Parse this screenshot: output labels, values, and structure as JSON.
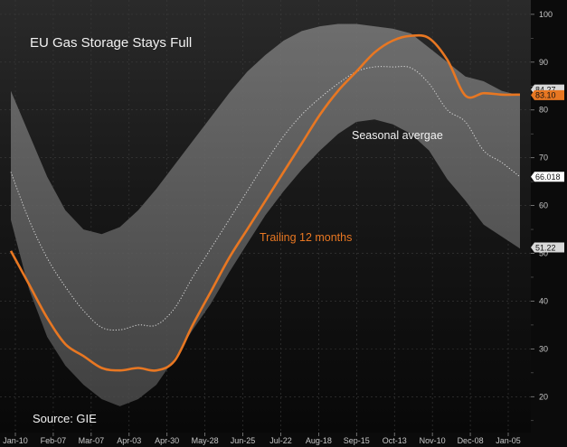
{
  "chart_data": {
    "type": "line",
    "title": "EU Gas Storage Stays Full",
    "source_note": "Source: GIE",
    "xlabel": "",
    "ylabel": "",
    "x_tick_labels": [
      "Jan-10",
      "Feb-07",
      "Mar-07",
      "Apr-03",
      "Apr-30",
      "May-28",
      "Jun-25",
      "Jul-22",
      "Aug-18",
      "Sep-15",
      "Oct-13",
      "Nov-10",
      "Dec-08",
      "Jan-05"
    ],
    "y_ticks": [
      20,
      30,
      40,
      50,
      60,
      70,
      80,
      90,
      100
    ],
    "ylim": [
      12.5,
      103
    ],
    "grid": true,
    "colors": {
      "background": "#0e0e0e",
      "band": "#6b6b6b",
      "trailing": "#e87722",
      "seasonal": "#dcdcdc",
      "text": "#f2f2f2"
    },
    "series": [
      {
        "name": "Trailing 12 months",
        "style": "solid",
        "values": [
          50.5,
          43.5,
          36.5,
          31,
          28.5,
          26,
          25.5,
          26,
          25.5,
          27.5,
          35,
          42,
          49,
          55,
          61,
          67,
          73,
          79,
          84,
          88,
          92,
          94.5,
          95.5,
          95,
          90.5,
          83,
          83.5,
          83.2,
          83.2
        ]
      },
      {
        "name": "Seasonal avergae",
        "style": "dotted",
        "values": [
          67,
          57,
          49,
          43,
          38,
          34.5,
          34,
          35,
          35,
          38.5,
          45,
          51,
          57,
          63,
          69,
          74.5,
          79,
          82.5,
          85.5,
          88,
          89,
          89,
          88.8,
          85.5,
          80,
          77.5,
          71.5,
          69,
          66
        ]
      },
      {
        "name": "band-upper",
        "style": "area",
        "values": [
          84,
          75,
          66,
          59,
          55,
          54,
          55.5,
          59,
          63.5,
          68.5,
          73.5,
          78.5,
          83.5,
          88,
          91.5,
          94.5,
          96.5,
          97.5,
          98,
          98,
          97.5,
          97,
          96,
          93,
          90,
          87,
          86,
          84,
          83
        ]
      },
      {
        "name": "band-lower",
        "style": "area",
        "values": [
          57,
          42.5,
          32.5,
          26.5,
          22.5,
          19.5,
          18,
          19.5,
          22.5,
          28,
          34,
          39.5,
          46,
          52,
          58,
          63,
          67.5,
          71.5,
          75,
          77.5,
          78,
          77,
          75,
          71.5,
          65.5,
          61,
          56,
          53.5,
          51
        ]
      }
    ],
    "annotations": {
      "trailing_label": "Trailing 12 months",
      "seasonal_label": "Seasonal avergae"
    },
    "end_value_labels": [
      {
        "value": 84.27,
        "text": "84.27"
      },
      {
        "value": 83.1,
        "text": "83.10"
      },
      {
        "value": 66.018,
        "text": "66.018"
      },
      {
        "value": 51.22,
        "text": "51.22"
      }
    ]
  }
}
